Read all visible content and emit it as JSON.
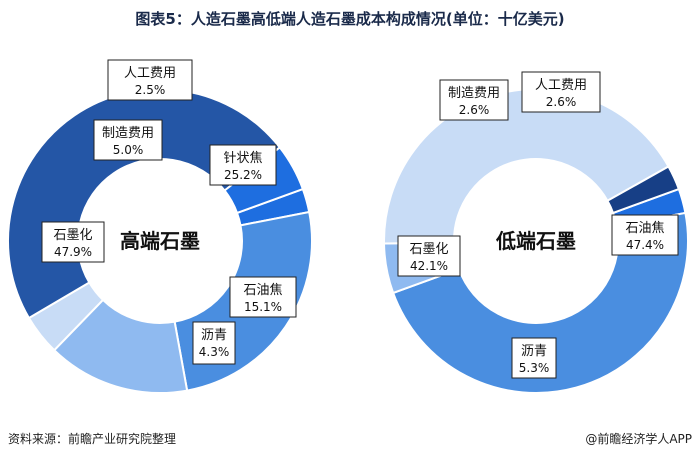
{
  "title": "图表5：人造石墨高低端人造石墨成本构成情况(单位：十亿美元)",
  "footer": {
    "source": "资料来源：前瞻产业研究院整理",
    "brand": "@前瞻经济学人APP"
  },
  "colors": {
    "dark_navy": "#2456a6",
    "mid_blue": "#4a8ee0",
    "light_blue": "#8fbaf0",
    "pale_blue": "#c8dcf6",
    "bright_blue": "#1e6ee0",
    "deep_navy": "#173f86"
  },
  "chart_data": [
    {
      "type": "pie",
      "donut": true,
      "center_label": "高端石墨",
      "slices": [
        {
          "name": "人工费用",
          "value": 2.5,
          "label": "2.5%",
          "color": "#1e6ee0"
        },
        {
          "name": "针状焦",
          "value": 25.2,
          "label": "25.2%",
          "color": "#4a8ee0"
        },
        {
          "name": "石油焦",
          "value": 15.1,
          "label": "15.1%",
          "color": "#8fbaf0"
        },
        {
          "name": "沥青",
          "value": 4.3,
          "label": "4.3%",
          "color": "#c8dcf6"
        },
        {
          "name": "石墨化",
          "value": 47.9,
          "label": "47.9%",
          "color": "#2456a6"
        },
        {
          "name": "制造费用",
          "value": 5.0,
          "label": "5.0%",
          "color": "#1e6ee0"
        }
      ]
    },
    {
      "type": "pie",
      "donut": true,
      "center_label": "低端石墨",
      "slices": [
        {
          "name": "人工费用",
          "value": 2.6,
          "label": "2.6%",
          "color": "#1e6ee0"
        },
        {
          "name": "石油焦",
          "value": 47.4,
          "label": "47.4%",
          "color": "#4a8ee0"
        },
        {
          "name": "沥青",
          "value": 5.3,
          "label": "5.3%",
          "color": "#8fbaf0"
        },
        {
          "name": "石墨化",
          "value": 42.1,
          "label": "42.1%",
          "color": "#c8dcf6"
        },
        {
          "name": "制造费用",
          "value": 2.6,
          "label": "2.6%",
          "color": "#173f86"
        }
      ]
    }
  ]
}
